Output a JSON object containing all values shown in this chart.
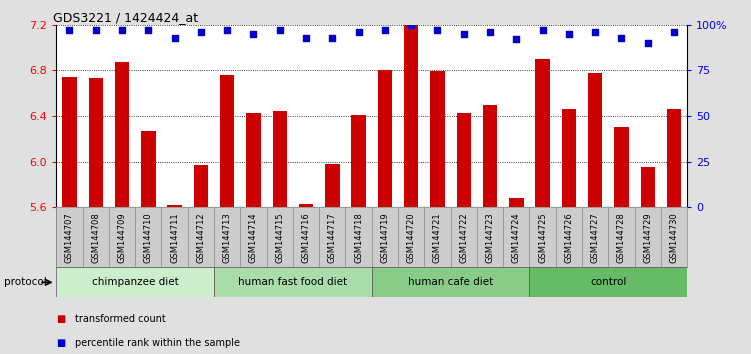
{
  "title": "GDS3221 / 1424424_at",
  "samples": [
    "GSM144707",
    "GSM144708",
    "GSM144709",
    "GSM144710",
    "GSM144711",
    "GSM144712",
    "GSM144713",
    "GSM144714",
    "GSM144715",
    "GSM144716",
    "GSM144717",
    "GSM144718",
    "GSM144719",
    "GSM144720",
    "GSM144721",
    "GSM144722",
    "GSM144723",
    "GSM144724",
    "GSM144725",
    "GSM144726",
    "GSM144727",
    "GSM144728",
    "GSM144729",
    "GSM144730"
  ],
  "bar_values": [
    6.74,
    6.73,
    6.87,
    6.27,
    5.62,
    5.97,
    6.76,
    6.43,
    6.44,
    5.63,
    5.98,
    6.41,
    6.8,
    7.2,
    6.79,
    6.43,
    6.5,
    5.68,
    6.9,
    6.46,
    6.78,
    6.3,
    5.95,
    6.46
  ],
  "percentile_values": [
    97,
    97,
    97,
    97,
    93,
    96,
    97,
    95,
    97,
    93,
    93,
    96,
    97,
    100,
    97,
    95,
    96,
    92,
    97,
    95,
    96,
    93,
    90,
    96
  ],
  "groups": [
    {
      "label": "chimpanzee diet",
      "start": 0,
      "end": 5,
      "color": "#cceecc"
    },
    {
      "label": "human fast food diet",
      "start": 6,
      "end": 11,
      "color": "#aaddaa"
    },
    {
      "label": "human cafe diet",
      "start": 12,
      "end": 17,
      "color": "#88cc88"
    },
    {
      "label": "control",
      "start": 18,
      "end": 23,
      "color": "#66bb66"
    }
  ],
  "ylim": [
    5.6,
    7.2
  ],
  "yticks": [
    5.6,
    6.0,
    6.4,
    6.8,
    7.2
  ],
  "bar_color": "#cc0000",
  "dot_color": "#0000cc",
  "right_yticks": [
    0,
    25,
    50,
    75,
    100
  ],
  "right_ylabels": [
    "0",
    "25",
    "50",
    "75",
    "100%"
  ],
  "bg_color": "#e0e0e0",
  "plot_bg": "#ffffff",
  "label_bg": "#cccccc",
  "protocol_label": "protocol"
}
